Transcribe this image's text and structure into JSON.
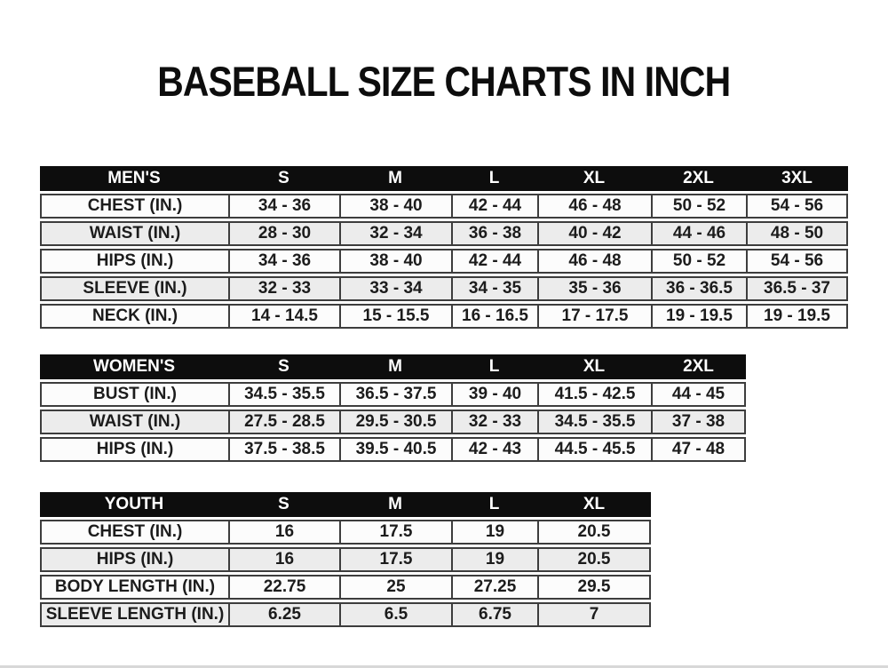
{
  "page": {
    "title": "BASEBALL SIZE CHARTS IN INCH"
  },
  "colors": {
    "header_bg": "#0d0d0d",
    "header_text": "#ffffff",
    "row_white": "#fcfcfc",
    "row_gray": "#ececec",
    "border": "#3d3d3d",
    "text": "#1c1c1c",
    "page_bg": "#ffffff",
    "bottom_line": "#d8d8d8"
  },
  "tables": [
    {
      "name": "mens",
      "header_label": "MEN'S",
      "columns": [
        "S",
        "M",
        "L",
        "XL",
        "2XL",
        "3XL"
      ],
      "rows": [
        {
          "label": "CHEST (IN.)",
          "values": [
            "34 - 36",
            "38 - 40",
            "42 - 44",
            "46 - 48",
            "50 - 52",
            "54 - 56"
          ]
        },
        {
          "label": "WAIST (IN.)",
          "values": [
            "28 - 30",
            "32 - 34",
            "36 - 38",
            "40 - 42",
            "44 - 46",
            "48 - 50"
          ]
        },
        {
          "label": "HIPS (IN.)",
          "values": [
            "34 - 36",
            "38 - 40",
            "42 - 44",
            "46 - 48",
            "50 - 52",
            "54 - 56"
          ]
        },
        {
          "label": "SLEEVE (IN.)",
          "values": [
            "32 - 33",
            "33 - 34",
            "34 - 35",
            "35 - 36",
            "36 - 36.5",
            "36.5 - 37"
          ]
        },
        {
          "label": "NECK (IN.)",
          "values": [
            "14 - 14.5",
            "15 - 15.5",
            "16 - 16.5",
            "17 - 17.5",
            "19 - 19.5",
            "19 - 19.5"
          ]
        }
      ]
    },
    {
      "name": "womens",
      "header_label": "WOMEN'S",
      "columns": [
        "S",
        "M",
        "L",
        "XL",
        "2XL"
      ],
      "rows": [
        {
          "label": "BUST (IN.)",
          "values": [
            "34.5 - 35.5",
            "36.5 - 37.5",
            "39 - 40",
            "41.5 - 42.5",
            "44 - 45"
          ]
        },
        {
          "label": "WAIST (IN.)",
          "values": [
            "27.5 - 28.5",
            "29.5 - 30.5",
            "32 - 33",
            "34.5 - 35.5",
            "37 - 38"
          ]
        },
        {
          "label": "HIPS (IN.)",
          "values": [
            "37.5 - 38.5",
            "39.5 - 40.5",
            "42 - 43",
            "44.5 - 45.5",
            "47 - 48"
          ]
        }
      ]
    },
    {
      "name": "youth",
      "header_label": "YOUTH",
      "columns": [
        "S",
        "M",
        "L",
        "XL"
      ],
      "rows": [
        {
          "label": "CHEST (IN.)",
          "values": [
            "16",
            "17.5",
            "19",
            "20.5"
          ]
        },
        {
          "label": "HIPS (IN.)",
          "values": [
            "16",
            "17.5",
            "19",
            "20.5"
          ]
        },
        {
          "label": "BODY LENGTH (IN.)",
          "values": [
            "22.75",
            "25",
            "27.25",
            "29.5"
          ]
        },
        {
          "label": "SLEEVE LENGTH (IN.)",
          "values": [
            "6.25",
            "6.5",
            "6.75",
            "7"
          ]
        }
      ]
    }
  ]
}
